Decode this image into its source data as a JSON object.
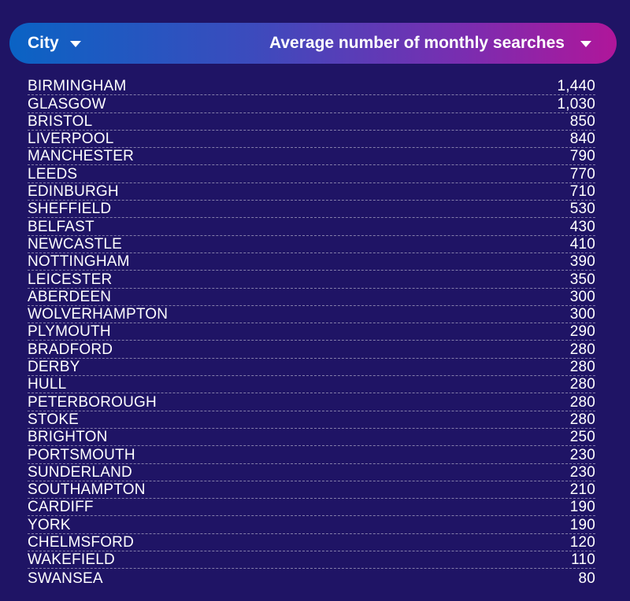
{
  "header": {
    "city_label": "City",
    "searches_label": "Average number of monthly searches"
  },
  "colors": {
    "background": "#1f1465",
    "gradient_start": "#0a63c4",
    "gradient_end": "#b0169a",
    "text": "#ffffff"
  },
  "icons": {
    "sort": "chevron-down-icon"
  },
  "chart_data": {
    "type": "table",
    "columns": [
      "City",
      "Average number of monthly searches"
    ],
    "rows": [
      {
        "city": "BIRMINGHAM",
        "value": "1,440"
      },
      {
        "city": "GLASGOW",
        "value": "1,030"
      },
      {
        "city": "BRISTOL",
        "value": "850"
      },
      {
        "city": "LIVERPOOL",
        "value": "840"
      },
      {
        "city": "MANCHESTER",
        "value": "790"
      },
      {
        "city": "LEEDS",
        "value": "770"
      },
      {
        "city": "EDINBURGH",
        "value": "710"
      },
      {
        "city": "SHEFFIELD",
        "value": "530"
      },
      {
        "city": "BELFAST",
        "value": "430"
      },
      {
        "city": "NEWCASTLE",
        "value": "410"
      },
      {
        "city": "NOTTINGHAM",
        "value": "390"
      },
      {
        "city": "LEICESTER",
        "value": "350"
      },
      {
        "city": "ABERDEEN",
        "value": "300"
      },
      {
        "city": "WOLVERHAMPTON",
        "value": "300"
      },
      {
        "city": "PLYMOUTH",
        "value": "290"
      },
      {
        "city": "BRADFORD",
        "value": "280"
      },
      {
        "city": "DERBY",
        "value": "280"
      },
      {
        "city": "HULL",
        "value": "280"
      },
      {
        "city": "PETERBOROUGH",
        "value": "280"
      },
      {
        "city": "STOKE",
        "value": "280"
      },
      {
        "city": "BRIGHTON",
        "value": "250"
      },
      {
        "city": "PORTSMOUTH",
        "value": "230"
      },
      {
        "city": "SUNDERLAND",
        "value": "230"
      },
      {
        "city": "SOUTHAMPTON",
        "value": "210"
      },
      {
        "city": "CARDIFF",
        "value": "190"
      },
      {
        "city": "YORK",
        "value": "190"
      },
      {
        "city": "CHELMSFORD",
        "value": "120"
      },
      {
        "city": "WAKEFIELD",
        "value": "110"
      },
      {
        "city": "SWANSEA",
        "value": "80"
      }
    ]
  }
}
